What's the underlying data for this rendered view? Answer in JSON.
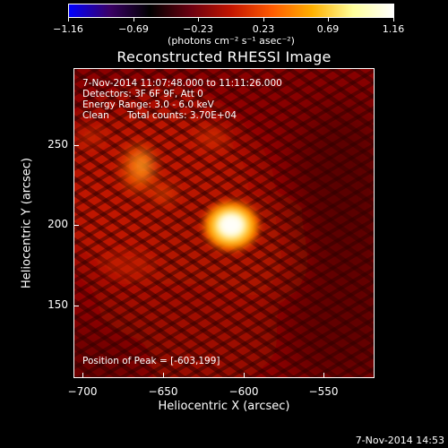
{
  "colorbar": {
    "colors": [
      "#0000ff",
      "#3a0066",
      "#000000",
      "#6a0010",
      "#c21500",
      "#ff5a00",
      "#ffb000",
      "#ffff9a",
      "#ffffff"
    ],
    "tick_labels": [
      "−1.16",
      "−0.69",
      "−0.23",
      "0.23",
      "0.69",
      "1.16"
    ],
    "units_label": "(photons cm⁻² s⁻¹ asec⁻²)"
  },
  "title": "Reconstructed RHESSI Image",
  "annotations": {
    "time_range": "7-Nov-2014 11:07:48.000 to 11:11:26.000",
    "detectors": "Detectors: 3F 6F 9F, Att 0",
    "energy_range": "Energy Range: 3.0 - 6.0 keV",
    "method": "Clean",
    "total_counts": "Total counts: 3.70E+04",
    "peak_position": "Position of Peak = [-603,199]"
  },
  "axes": {
    "xlabel": "Heliocentric X (arcsec)",
    "ylabel": "Heliocentric Y (arcsec)",
    "xticks": [
      "−700",
      "−650",
      "−600",
      "−550"
    ],
    "yticks": [
      "250",
      "200",
      "150"
    ]
  },
  "timestamp": "7-Nov-2014 14:53"
}
